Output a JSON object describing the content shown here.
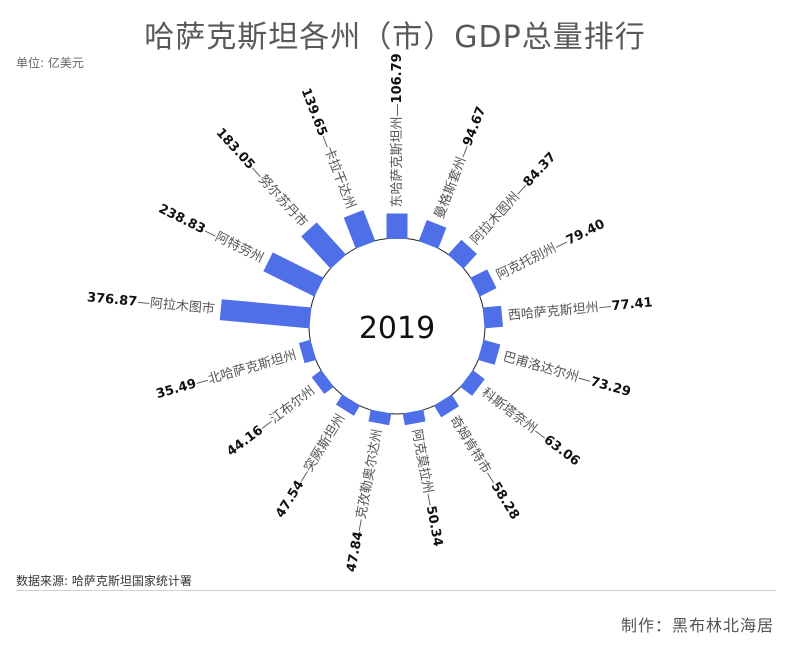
{
  "title": "哈萨克斯坦各州（市）GDP总量排行",
  "unit": "单位: 亿美元",
  "source": "数据来源: 哈萨克斯坦国家统计署",
  "maker": "制作：黑布林北海居",
  "colors": {
    "bar": "#4f6fe8",
    "circle_stroke": "#222222",
    "label": "#555555",
    "value": "#111111"
  },
  "chart_data": {
    "type": "bar",
    "layout": "radial",
    "center_label": "2019",
    "categories": [
      "东哈萨克斯坦州",
      "曼格斯套州",
      "阿拉木图州",
      "阿克托别州",
      "西哈萨克斯坦州",
      "巴甫洛达尔州",
      "科斯塔奈州",
      "奇姆肯特市",
      "阿克莫拉州",
      "克孜勒奥尔达州",
      "突厥斯坦州",
      "江布尔州",
      "北哈萨克斯坦州",
      "阿拉木图市",
      "阿特劳州",
      "努尔苏丹市",
      "卡拉干达州"
    ],
    "values": [
      106.79,
      94.67,
      84.37,
      79.4,
      77.41,
      73.29,
      63.06,
      58.28,
      50.34,
      47.84,
      47.54,
      44.16,
      35.49,
      376.87,
      238.83,
      183.05,
      139.65
    ],
    "value_labels": [
      "106.79",
      "94.67",
      "84.37",
      "79.40",
      "77.41",
      "73.29",
      "63.06",
      "58.28",
      "50.34",
      "47.84",
      "47.54",
      "44.16",
      "35.49",
      "376.87",
      "238.83",
      "183.05",
      "139.65"
    ],
    "series": [
      {
        "name": "2019",
        "values": [
          106.79,
          94.67,
          84.37,
          79.4,
          77.41,
          73.29,
          63.06,
          58.28,
          50.34,
          47.84,
          47.54,
          44.16,
          35.49,
          376.87,
          238.83,
          183.05,
          139.65
        ]
      }
    ]
  }
}
